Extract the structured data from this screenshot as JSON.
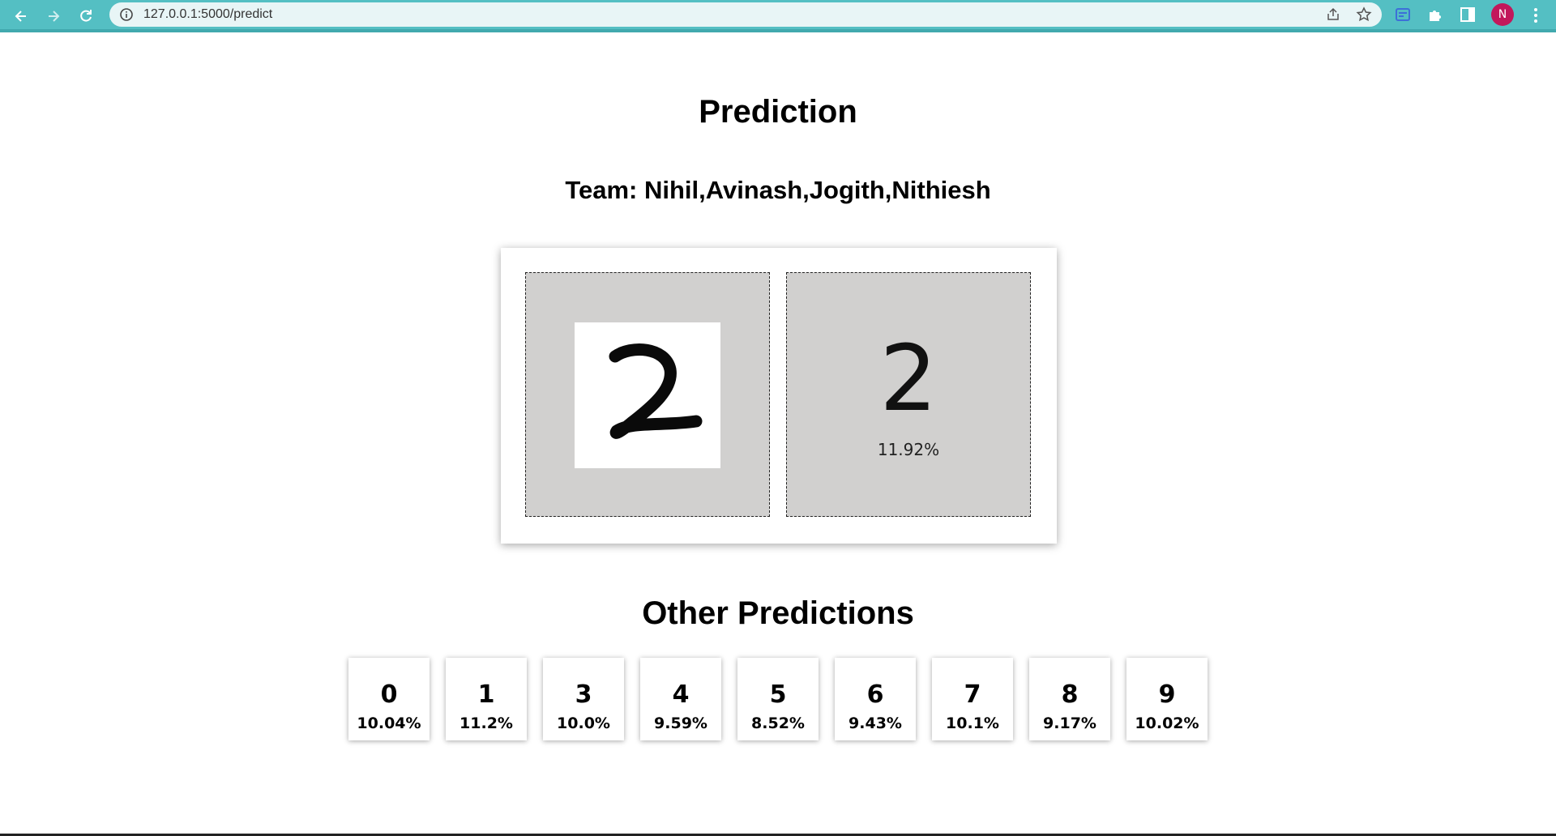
{
  "browser": {
    "url": "127.0.0.1:5000/predict",
    "avatar_initial": "N",
    "toolbar_color": "#54bfc3"
  },
  "page": {
    "title": "Prediction",
    "team": "Team: Nihil,Avinash,Jogith,Nithiesh"
  },
  "prediction": {
    "digit": "2",
    "percent": "11.92%",
    "pane_color": "#d1d0cf"
  },
  "other_predictions": {
    "title": "Other Predictions",
    "items": [
      {
        "digit": "0",
        "percent": "10.04%"
      },
      {
        "digit": "1",
        "percent": "11.2%"
      },
      {
        "digit": "3",
        "percent": "10.0%"
      },
      {
        "digit": "4",
        "percent": "9.59%"
      },
      {
        "digit": "5",
        "percent": "8.52%"
      },
      {
        "digit": "6",
        "percent": "9.43%"
      },
      {
        "digit": "7",
        "percent": "10.1%"
      },
      {
        "digit": "8",
        "percent": "9.17%"
      },
      {
        "digit": "9",
        "percent": "10.02%"
      }
    ]
  }
}
